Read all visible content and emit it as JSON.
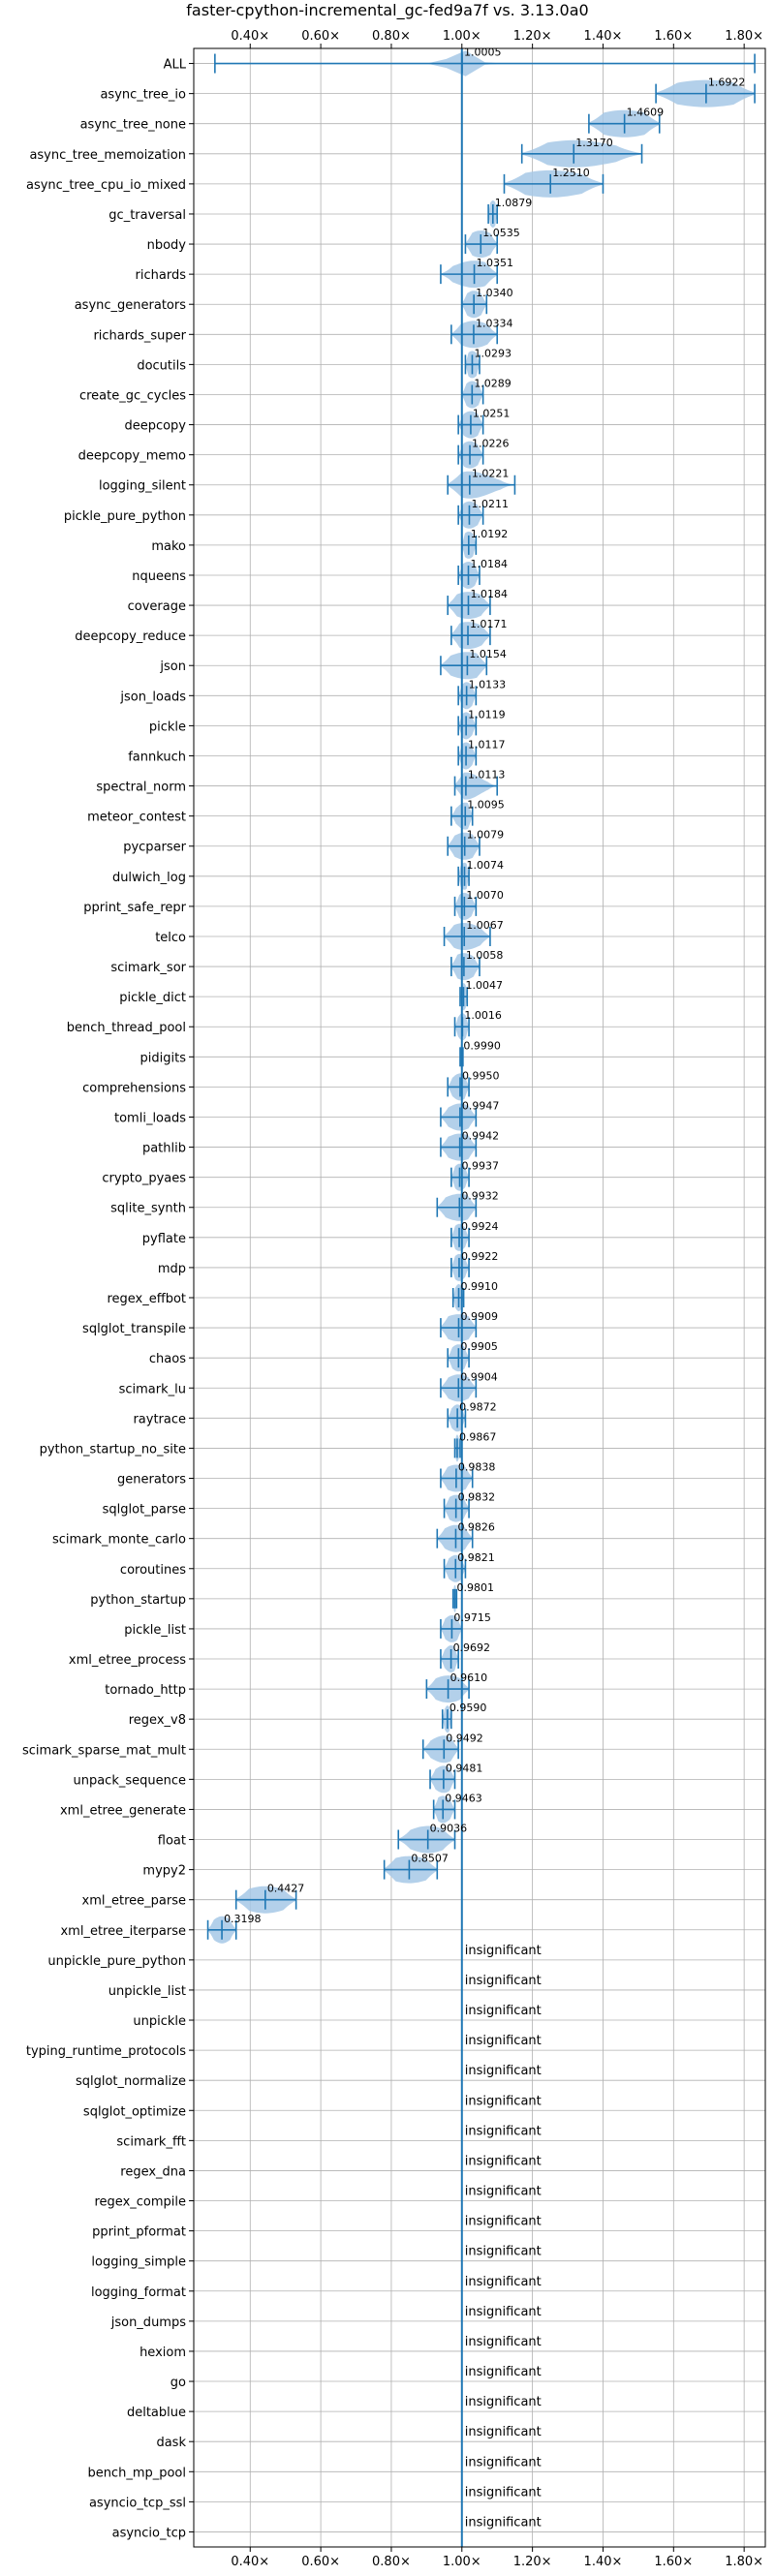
{
  "chart_data": {
    "type": "violin",
    "title": "faster-cpython-incremental_gc-fed9a7f vs. 3.13.0a0",
    "xlabel": "",
    "ylabel": "",
    "xlim": [
      0.24,
      1.86
    ],
    "x_ticks": [
      0.4,
      0.6,
      0.8,
      1.0,
      1.2,
      1.4,
      1.6,
      1.8
    ],
    "x_tick_labels": [
      "0.40×",
      "0.60×",
      "0.80×",
      "1.00×",
      "1.20×",
      "1.40×",
      "1.60×",
      "1.80×"
    ],
    "reference_line": 1.0,
    "grid": true,
    "insignificant_label": "insignificant",
    "benchmarks": [
      {
        "name": "ALL",
        "label": "1.0005",
        "value": 1.0005,
        "min": 0.3,
        "max": 1.83,
        "spread": 0.03
      },
      {
        "name": "async_tree_io",
        "label": "1.6922",
        "value": 1.6922,
        "min": 1.55,
        "max": 1.83,
        "spread": 0.12
      },
      {
        "name": "async_tree_none",
        "label": "1.4609",
        "value": 1.4609,
        "min": 1.36,
        "max": 1.56,
        "spread": 0.09
      },
      {
        "name": "async_tree_memoization",
        "label": "1.3170",
        "value": 1.317,
        "min": 1.17,
        "max": 1.51,
        "spread": 0.12
      },
      {
        "name": "async_tree_cpu_io_mixed",
        "label": "1.2510",
        "value": 1.251,
        "min": 1.12,
        "max": 1.4,
        "spread": 0.11
      },
      {
        "name": "gc_traversal",
        "label": "1.0879",
        "value": 1.0879,
        "min": 1.075,
        "max": 1.1,
        "spread": 0.012
      },
      {
        "name": "nbody",
        "label": "1.0535",
        "value": 1.0535,
        "min": 1.01,
        "max": 1.1,
        "spread": 0.04
      },
      {
        "name": "richards",
        "label": "1.0351",
        "value": 1.0351,
        "min": 0.94,
        "max": 1.1,
        "spread": 0.06
      },
      {
        "name": "async_generators",
        "label": "1.0340",
        "value": 1.034,
        "min": 1.0,
        "max": 1.07,
        "spread": 0.03
      },
      {
        "name": "richards_super",
        "label": "1.0334",
        "value": 1.0334,
        "min": 0.97,
        "max": 1.1,
        "spread": 0.05
      },
      {
        "name": "docutils",
        "label": "1.0293",
        "value": 1.0293,
        "min": 1.01,
        "max": 1.05,
        "spread": 0.02
      },
      {
        "name": "create_gc_cycles",
        "label": "1.0289",
        "value": 1.0289,
        "min": 1.0,
        "max": 1.06,
        "spread": 0.025
      },
      {
        "name": "deepcopy",
        "label": "1.0251",
        "value": 1.0251,
        "min": 0.99,
        "max": 1.06,
        "spread": 0.03
      },
      {
        "name": "deepcopy_memo",
        "label": "1.0226",
        "value": 1.0226,
        "min": 0.99,
        "max": 1.06,
        "spread": 0.03
      },
      {
        "name": "logging_silent",
        "label": "1.0221",
        "value": 1.0221,
        "min": 0.96,
        "max": 1.15,
        "spread": 0.06
      },
      {
        "name": "pickle_pure_python",
        "label": "1.0211",
        "value": 1.0211,
        "min": 0.99,
        "max": 1.06,
        "spread": 0.03
      },
      {
        "name": "mako",
        "label": "1.0192",
        "value": 1.0192,
        "min": 1.0,
        "max": 1.04,
        "spread": 0.02
      },
      {
        "name": "nqueens",
        "label": "1.0184",
        "value": 1.0184,
        "min": 0.99,
        "max": 1.05,
        "spread": 0.025
      },
      {
        "name": "coverage",
        "label": "1.0184",
        "value": 1.0184,
        "min": 0.96,
        "max": 1.08,
        "spread": 0.05
      },
      {
        "name": "deepcopy_reduce",
        "label": "1.0171",
        "value": 1.0171,
        "min": 0.97,
        "max": 1.08,
        "spread": 0.05
      },
      {
        "name": "json",
        "label": "1.0154",
        "value": 1.0154,
        "min": 0.94,
        "max": 1.07,
        "spread": 0.06
      },
      {
        "name": "json_loads",
        "label": "1.0133",
        "value": 1.0133,
        "min": 0.99,
        "max": 1.04,
        "spread": 0.02
      },
      {
        "name": "pickle",
        "label": "1.0119",
        "value": 1.0119,
        "min": 0.99,
        "max": 1.04,
        "spread": 0.02
      },
      {
        "name": "fannkuch",
        "label": "1.0117",
        "value": 1.0117,
        "min": 0.99,
        "max": 1.04,
        "spread": 0.02
      },
      {
        "name": "spectral_norm",
        "label": "1.0113",
        "value": 1.0113,
        "min": 0.98,
        "max": 1.1,
        "spread": 0.04
      },
      {
        "name": "meteor_contest",
        "label": "1.0095",
        "value": 1.0095,
        "min": 0.97,
        "max": 1.03,
        "spread": 0.025
      },
      {
        "name": "pycparser",
        "label": "1.0079",
        "value": 1.0079,
        "min": 0.96,
        "max": 1.05,
        "spread": 0.04
      },
      {
        "name": "dulwich_log",
        "label": "1.0074",
        "value": 1.0074,
        "min": 0.99,
        "max": 1.02,
        "spread": 0.015
      },
      {
        "name": "pprint_safe_repr",
        "label": "1.0070",
        "value": 1.007,
        "min": 0.98,
        "max": 1.04,
        "spread": 0.025
      },
      {
        "name": "telco",
        "label": "1.0067",
        "value": 1.0067,
        "min": 0.95,
        "max": 1.08,
        "spread": 0.05
      },
      {
        "name": "scimark_sor",
        "label": "1.0058",
        "value": 1.0058,
        "min": 0.97,
        "max": 1.05,
        "spread": 0.035
      },
      {
        "name": "pickle_dict",
        "label": "1.0047",
        "value": 1.0047,
        "min": 0.995,
        "max": 1.015,
        "spread": 0.01
      },
      {
        "name": "bench_thread_pool",
        "label": "1.0016",
        "value": 1.0016,
        "min": 0.98,
        "max": 1.02,
        "spread": 0.015
      },
      {
        "name": "pidigits",
        "label": "0.9990",
        "value": 0.999,
        "min": 0.995,
        "max": 1.003,
        "spread": 0.004
      },
      {
        "name": "comprehensions",
        "label": "0.9950",
        "value": 0.995,
        "min": 0.96,
        "max": 1.02,
        "spread": 0.025
      },
      {
        "name": "tomli_loads",
        "label": "0.9947",
        "value": 0.9947,
        "min": 0.94,
        "max": 1.04,
        "spread": 0.04
      },
      {
        "name": "pathlib",
        "label": "0.9942",
        "value": 0.9942,
        "min": 0.94,
        "max": 1.04,
        "spread": 0.045
      },
      {
        "name": "crypto_pyaes",
        "label": "0.9937",
        "value": 0.9937,
        "min": 0.97,
        "max": 1.02,
        "spread": 0.02
      },
      {
        "name": "sqlite_synth",
        "label": "0.9932",
        "value": 0.9932,
        "min": 0.93,
        "max": 1.04,
        "spread": 0.05
      },
      {
        "name": "pyflate",
        "label": "0.9924",
        "value": 0.9924,
        "min": 0.97,
        "max": 1.02,
        "spread": 0.02
      },
      {
        "name": "mdp",
        "label": "0.9922",
        "value": 0.9922,
        "min": 0.97,
        "max": 1.02,
        "spread": 0.02
      },
      {
        "name": "regex_effbot",
        "label": "0.9910",
        "value": 0.991,
        "min": 0.975,
        "max": 1.005,
        "spread": 0.012
      },
      {
        "name": "sqlglot_transpile",
        "label": "0.9909",
        "value": 0.9909,
        "min": 0.94,
        "max": 1.04,
        "spread": 0.05
      },
      {
        "name": "chaos",
        "label": "0.9905",
        "value": 0.9905,
        "min": 0.96,
        "max": 1.02,
        "spread": 0.025
      },
      {
        "name": "scimark_lu",
        "label": "0.9904",
        "value": 0.9904,
        "min": 0.94,
        "max": 1.04,
        "spread": 0.04
      },
      {
        "name": "raytrace",
        "label": "0.9872",
        "value": 0.9872,
        "min": 0.96,
        "max": 1.01,
        "spread": 0.02
      },
      {
        "name": "python_startup_no_site",
        "label": "0.9867",
        "value": 0.9867,
        "min": 0.98,
        "max": 0.995,
        "spread": 0.006
      },
      {
        "name": "generators",
        "label": "0.9838",
        "value": 0.9838,
        "min": 0.94,
        "max": 1.03,
        "spread": 0.04
      },
      {
        "name": "sqlglot_parse",
        "label": "0.9832",
        "value": 0.9832,
        "min": 0.95,
        "max": 1.02,
        "spread": 0.03
      },
      {
        "name": "scimark_monte_carlo",
        "label": "0.9826",
        "value": 0.9826,
        "min": 0.93,
        "max": 1.03,
        "spread": 0.04
      },
      {
        "name": "coroutines",
        "label": "0.9821",
        "value": 0.9821,
        "min": 0.95,
        "max": 1.01,
        "spread": 0.025
      },
      {
        "name": "python_startup",
        "label": "0.9801",
        "value": 0.9801,
        "min": 0.975,
        "max": 0.985,
        "spread": 0.005
      },
      {
        "name": "pickle_list",
        "label": "0.9715",
        "value": 0.9715,
        "min": 0.94,
        "max": 1.0,
        "spread": 0.025
      },
      {
        "name": "xml_etree_process",
        "label": "0.9692",
        "value": 0.9692,
        "min": 0.94,
        "max": 0.99,
        "spread": 0.02
      },
      {
        "name": "tornado_http",
        "label": "0.9610",
        "value": 0.961,
        "min": 0.9,
        "max": 1.02,
        "spread": 0.05
      },
      {
        "name": "regex_v8",
        "label": "0.9590",
        "value": 0.959,
        "min": 0.945,
        "max": 0.97,
        "spread": 0.01
      },
      {
        "name": "scimark_sparse_mat_mult",
        "label": "0.9492",
        "value": 0.9492,
        "min": 0.89,
        "max": 0.99,
        "spread": 0.04
      },
      {
        "name": "unpack_sequence",
        "label": "0.9481",
        "value": 0.9481,
        "min": 0.91,
        "max": 0.98,
        "spread": 0.03
      },
      {
        "name": "xml_etree_generate",
        "label": "0.9463",
        "value": 0.9463,
        "min": 0.92,
        "max": 0.98,
        "spread": 0.025
      },
      {
        "name": "float",
        "label": "0.9036",
        "value": 0.9036,
        "min": 0.82,
        "max": 0.98,
        "spread": 0.06
      },
      {
        "name": "mypy2",
        "label": "0.8507",
        "value": 0.8507,
        "min": 0.78,
        "max": 0.93,
        "spread": 0.07
      },
      {
        "name": "xml_etree_parse",
        "label": "0.4427",
        "value": 0.4427,
        "min": 0.36,
        "max": 0.53,
        "spread": 0.07
      },
      {
        "name": "xml_etree_iterparse",
        "label": "0.3198",
        "value": 0.3198,
        "min": 0.28,
        "max": 0.36,
        "spread": 0.03
      },
      {
        "name": "unpickle_pure_python",
        "label": "insignificant",
        "value": null
      },
      {
        "name": "unpickle_list",
        "label": "insignificant",
        "value": null
      },
      {
        "name": "unpickle",
        "label": "insignificant",
        "value": null
      },
      {
        "name": "typing_runtime_protocols",
        "label": "insignificant",
        "value": null
      },
      {
        "name": "sqlglot_normalize",
        "label": "insignificant",
        "value": null
      },
      {
        "name": "sqlglot_optimize",
        "label": "insignificant",
        "value": null
      },
      {
        "name": "scimark_fft",
        "label": "insignificant",
        "value": null
      },
      {
        "name": "regex_dna",
        "label": "insignificant",
        "value": null
      },
      {
        "name": "regex_compile",
        "label": "insignificant",
        "value": null
      },
      {
        "name": "pprint_pformat",
        "label": "insignificant",
        "value": null
      },
      {
        "name": "logging_simple",
        "label": "insignificant",
        "value": null
      },
      {
        "name": "logging_format",
        "label": "insignificant",
        "value": null
      },
      {
        "name": "json_dumps",
        "label": "insignificant",
        "value": null
      },
      {
        "name": "hexiom",
        "label": "insignificant",
        "value": null
      },
      {
        "name": "go",
        "label": "insignificant",
        "value": null
      },
      {
        "name": "deltablue",
        "label": "insignificant",
        "value": null
      },
      {
        "name": "dask",
        "label": "insignificant",
        "value": null
      },
      {
        "name": "bench_mp_pool",
        "label": "insignificant",
        "value": null
      },
      {
        "name": "asyncio_tcp_ssl",
        "label": "insignificant",
        "value": null
      },
      {
        "name": "asyncio_tcp",
        "label": "insignificant",
        "value": null
      }
    ],
    "colors": {
      "line": "#1f77b4",
      "violin_fill": "#a6c8e6",
      "grid": "#b0b0b0",
      "axes": "#000000"
    }
  }
}
